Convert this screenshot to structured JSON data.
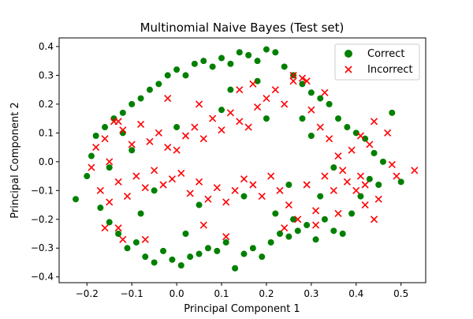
{
  "colors": {
    "correct": "#008000",
    "incorrect": "#ff0000",
    "axis": "#000000"
  },
  "chart_data": {
    "type": "scatter",
    "title": "Multinomial Naive Bayes (Test set)",
    "xlabel": "Principal Component 1",
    "ylabel": "Principal Component 2",
    "xlim": [
      -0.262,
      0.555
    ],
    "ylim": [
      -0.42,
      0.43
    ],
    "x_ticks": [
      -0.2,
      -0.1,
      0.0,
      0.1,
      0.2,
      0.3,
      0.4,
      0.5
    ],
    "x_tick_labels": [
      "−0.2",
      "−0.1",
      "0.0",
      "0.1",
      "0.2",
      "0.3",
      "0.4",
      "0.5"
    ],
    "y_ticks": [
      -0.4,
      -0.3,
      -0.2,
      -0.1,
      0.0,
      0.1,
      0.2,
      0.3,
      0.4
    ],
    "y_tick_labels": [
      "−0.4",
      "−0.3",
      "−0.2",
      "−0.1",
      "0.0",
      "0.1",
      "0.2",
      "0.3",
      "0.4"
    ],
    "grid": false,
    "legend_position": "top-right",
    "series": [
      {
        "name": "Correct",
        "marker": "circle",
        "color": "#008000",
        "points": [
          [
            -0.225,
            -0.13
          ],
          [
            -0.2,
            -0.05
          ],
          [
            -0.19,
            0.02
          ],
          [
            -0.18,
            0.09
          ],
          [
            -0.17,
            -0.16
          ],
          [
            -0.16,
            0.12
          ],
          [
            -0.15,
            -0.21
          ],
          [
            -0.14,
            0.15
          ],
          [
            -0.13,
            -0.25
          ],
          [
            -0.12,
            0.17
          ],
          [
            -0.11,
            -0.3
          ],
          [
            -0.1,
            0.2
          ],
          [
            -0.09,
            -0.28
          ],
          [
            -0.08,
            0.22
          ],
          [
            -0.07,
            -0.33
          ],
          [
            -0.06,
            0.25
          ],
          [
            -0.05,
            -0.35
          ],
          [
            -0.04,
            0.27
          ],
          [
            -0.03,
            -0.31
          ],
          [
            -0.02,
            0.3
          ],
          [
            -0.01,
            -0.34
          ],
          [
            0.0,
            0.32
          ],
          [
            0.01,
            -0.36
          ],
          [
            0.02,
            0.3
          ],
          [
            0.03,
            -0.33
          ],
          [
            0.04,
            0.34
          ],
          [
            0.05,
            -0.32
          ],
          [
            0.06,
            0.35
          ],
          [
            0.07,
            -0.3
          ],
          [
            0.08,
            0.33
          ],
          [
            0.09,
            -0.31
          ],
          [
            0.1,
            0.36
          ],
          [
            0.11,
            -0.28
          ],
          [
            0.12,
            0.34
          ],
          [
            0.13,
            -0.37
          ],
          [
            0.14,
            0.38
          ],
          [
            0.15,
            -0.32
          ],
          [
            0.16,
            0.37
          ],
          [
            0.17,
            -0.3
          ],
          [
            0.18,
            0.35
          ],
          [
            0.19,
            -0.33
          ],
          [
            0.2,
            0.39
          ],
          [
            0.21,
            -0.28
          ],
          [
            0.22,
            0.38
          ],
          [
            0.23,
            -0.25
          ],
          [
            0.24,
            0.33
          ],
          [
            0.25,
            -0.26
          ],
          [
            0.26,
            0.3
          ],
          [
            0.27,
            -0.24
          ],
          [
            0.28,
            0.27
          ],
          [
            0.29,
            -0.22
          ],
          [
            0.3,
            0.24
          ],
          [
            0.31,
            -0.27
          ],
          [
            0.32,
            0.22
          ],
          [
            0.33,
            -0.2
          ],
          [
            0.34,
            0.2
          ],
          [
            0.35,
            -0.24
          ],
          [
            0.36,
            0.15
          ],
          [
            0.37,
            -0.25
          ],
          [
            0.38,
            0.12
          ],
          [
            0.39,
            -0.18
          ],
          [
            0.4,
            0.1
          ],
          [
            0.41,
            -0.12
          ],
          [
            0.42,
            0.08
          ],
          [
            0.43,
            -0.06
          ],
          [
            0.44,
            0.03
          ],
          [
            0.45,
            -0.08
          ],
          [
            0.46,
            0.0
          ],
          [
            0.48,
            0.17
          ],
          [
            0.5,
            -0.07
          ],
          [
            -0.15,
            -0.02
          ],
          [
            -0.1,
            0.04
          ],
          [
            -0.05,
            -0.1
          ],
          [
            0.0,
            0.12
          ],
          [
            0.05,
            -0.15
          ],
          [
            0.1,
            0.18
          ],
          [
            0.15,
            -0.12
          ],
          [
            0.2,
            0.15
          ],
          [
            0.25,
            -0.08
          ],
          [
            0.3,
            0.09
          ],
          [
            0.35,
            -0.02
          ],
          [
            0.28,
            0.15
          ],
          [
            0.32,
            -0.12
          ],
          [
            0.22,
            -0.18
          ],
          [
            0.12,
            0.25
          ],
          [
            0.02,
            -0.25
          ],
          [
            -0.08,
            -0.18
          ],
          [
            -0.12,
            0.1
          ],
          [
            0.18,
            0.28
          ],
          [
            0.26,
            -0.2
          ]
        ]
      },
      {
        "name": "Incorrect",
        "marker": "x",
        "color": "#ff0000",
        "points": [
          [
            -0.19,
            -0.02
          ],
          [
            -0.18,
            0.05
          ],
          [
            -0.17,
            -0.1
          ],
          [
            -0.16,
            0.08
          ],
          [
            -0.15,
            -0.14
          ],
          [
            -0.14,
            0.14
          ],
          [
            -0.13,
            -0.07
          ],
          [
            -0.12,
            0.11
          ],
          [
            -0.11,
            -0.12
          ],
          [
            -0.1,
            0.06
          ],
          [
            -0.09,
            -0.05
          ],
          [
            -0.08,
            0.13
          ],
          [
            -0.07,
            -0.09
          ],
          [
            -0.06,
            0.07
          ],
          [
            -0.05,
            -0.03
          ],
          [
            -0.04,
            0.1
          ],
          [
            -0.03,
            -0.08
          ],
          [
            -0.02,
            0.05
          ],
          [
            -0.01,
            -0.06
          ],
          [
            0.0,
            0.04
          ],
          [
            0.01,
            -0.04
          ],
          [
            0.02,
            0.09
          ],
          [
            0.03,
            -0.11
          ],
          [
            0.04,
            0.12
          ],
          [
            0.05,
            -0.07
          ],
          [
            0.06,
            0.08
          ],
          [
            0.07,
            -0.13
          ],
          [
            0.08,
            0.15
          ],
          [
            0.09,
            -0.09
          ],
          [
            0.1,
            0.11
          ],
          [
            0.11,
            -0.14
          ],
          [
            0.12,
            0.17
          ],
          [
            0.13,
            -0.1
          ],
          [
            0.14,
            0.14
          ],
          [
            0.15,
            -0.06
          ],
          [
            0.16,
            0.12
          ],
          [
            0.17,
            -0.08
          ],
          [
            0.18,
            0.19
          ],
          [
            0.19,
            -0.12
          ],
          [
            0.2,
            0.22
          ],
          [
            0.21,
            -0.05
          ],
          [
            0.22,
            0.25
          ],
          [
            0.23,
            -0.1
          ],
          [
            0.24,
            0.2
          ],
          [
            0.25,
            -0.15
          ],
          [
            0.26,
            0.28
          ],
          [
            0.27,
            -0.2
          ],
          [
            0.28,
            0.29
          ],
          [
            0.29,
            -0.08
          ],
          [
            0.3,
            0.18
          ],
          [
            0.31,
            -0.17
          ],
          [
            0.32,
            0.12
          ],
          [
            0.33,
            -0.05
          ],
          [
            0.34,
            0.08
          ],
          [
            0.35,
            -0.1
          ],
          [
            0.36,
            0.02
          ],
          [
            0.37,
            -0.03
          ],
          [
            0.38,
            -0.07
          ],
          [
            0.39,
            0.04
          ],
          [
            0.4,
            -0.1
          ],
          [
            0.41,
            0.09
          ],
          [
            0.42,
            -0.08
          ],
          [
            0.43,
            0.06
          ],
          [
            0.44,
            0.14
          ],
          [
            0.45,
            -0.13
          ],
          [
            0.47,
            0.1
          ],
          [
            0.48,
            -0.01
          ],
          [
            0.49,
            -0.05
          ],
          [
            0.53,
            -0.03
          ],
          [
            0.44,
            -0.2
          ],
          [
            0.42,
            -0.15
          ],
          [
            0.36,
            -0.18
          ],
          [
            -0.13,
            -0.23
          ],
          [
            -0.12,
            -0.27
          ],
          [
            -0.16,
            -0.23
          ],
          [
            -0.15,
            0.0
          ],
          [
            -0.13,
            0.14
          ],
          [
            0.11,
            -0.26
          ],
          [
            0.06,
            -0.22
          ],
          [
            -0.07,
            -0.27
          ],
          [
            0.17,
            0.27
          ],
          [
            0.26,
            0.3
          ],
          [
            0.29,
            0.28
          ],
          [
            0.33,
            0.24
          ],
          [
            0.41,
            -0.05
          ],
          [
            0.31,
            -0.22
          ],
          [
            0.24,
            -0.23
          ],
          [
            0.05,
            0.2
          ],
          [
            -0.02,
            0.22
          ],
          [
            0.14,
            0.25
          ]
        ]
      }
    ]
  }
}
